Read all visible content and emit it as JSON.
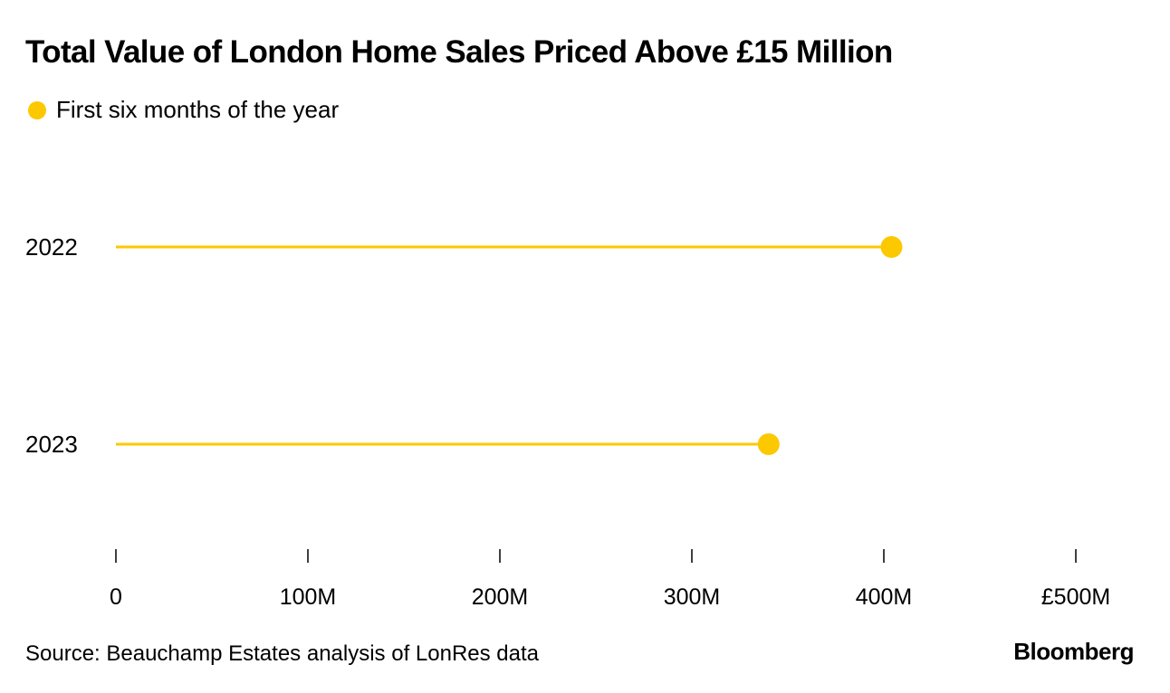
{
  "chart_data": {
    "type": "dot-line",
    "title": "Total Value of London Home Sales Priced Above £15 Million",
    "legend": [
      {
        "name": "First six months of the year",
        "color": "#fcc800"
      }
    ],
    "categories": [
      "2022",
      "2023"
    ],
    "series": [
      {
        "name": "First six months of the year",
        "values": [
          404,
          340
        ],
        "unit": "M GBP"
      }
    ],
    "x_ticks": [
      0,
      100,
      200,
      300,
      400,
      500
    ],
    "x_tick_labels": [
      "0",
      "100M",
      "200M",
      "300M",
      "400M",
      "£500M"
    ],
    "xlim": [
      0,
      500
    ],
    "xlabel": "",
    "ylabel": "",
    "grid": false
  },
  "footer": {
    "source": "Source: Beauchamp Estates analysis of LonRes data",
    "brand": "Bloomberg"
  },
  "colors": {
    "accent": "#fcc800",
    "text": "#000000",
    "background": "#ffffff"
  }
}
